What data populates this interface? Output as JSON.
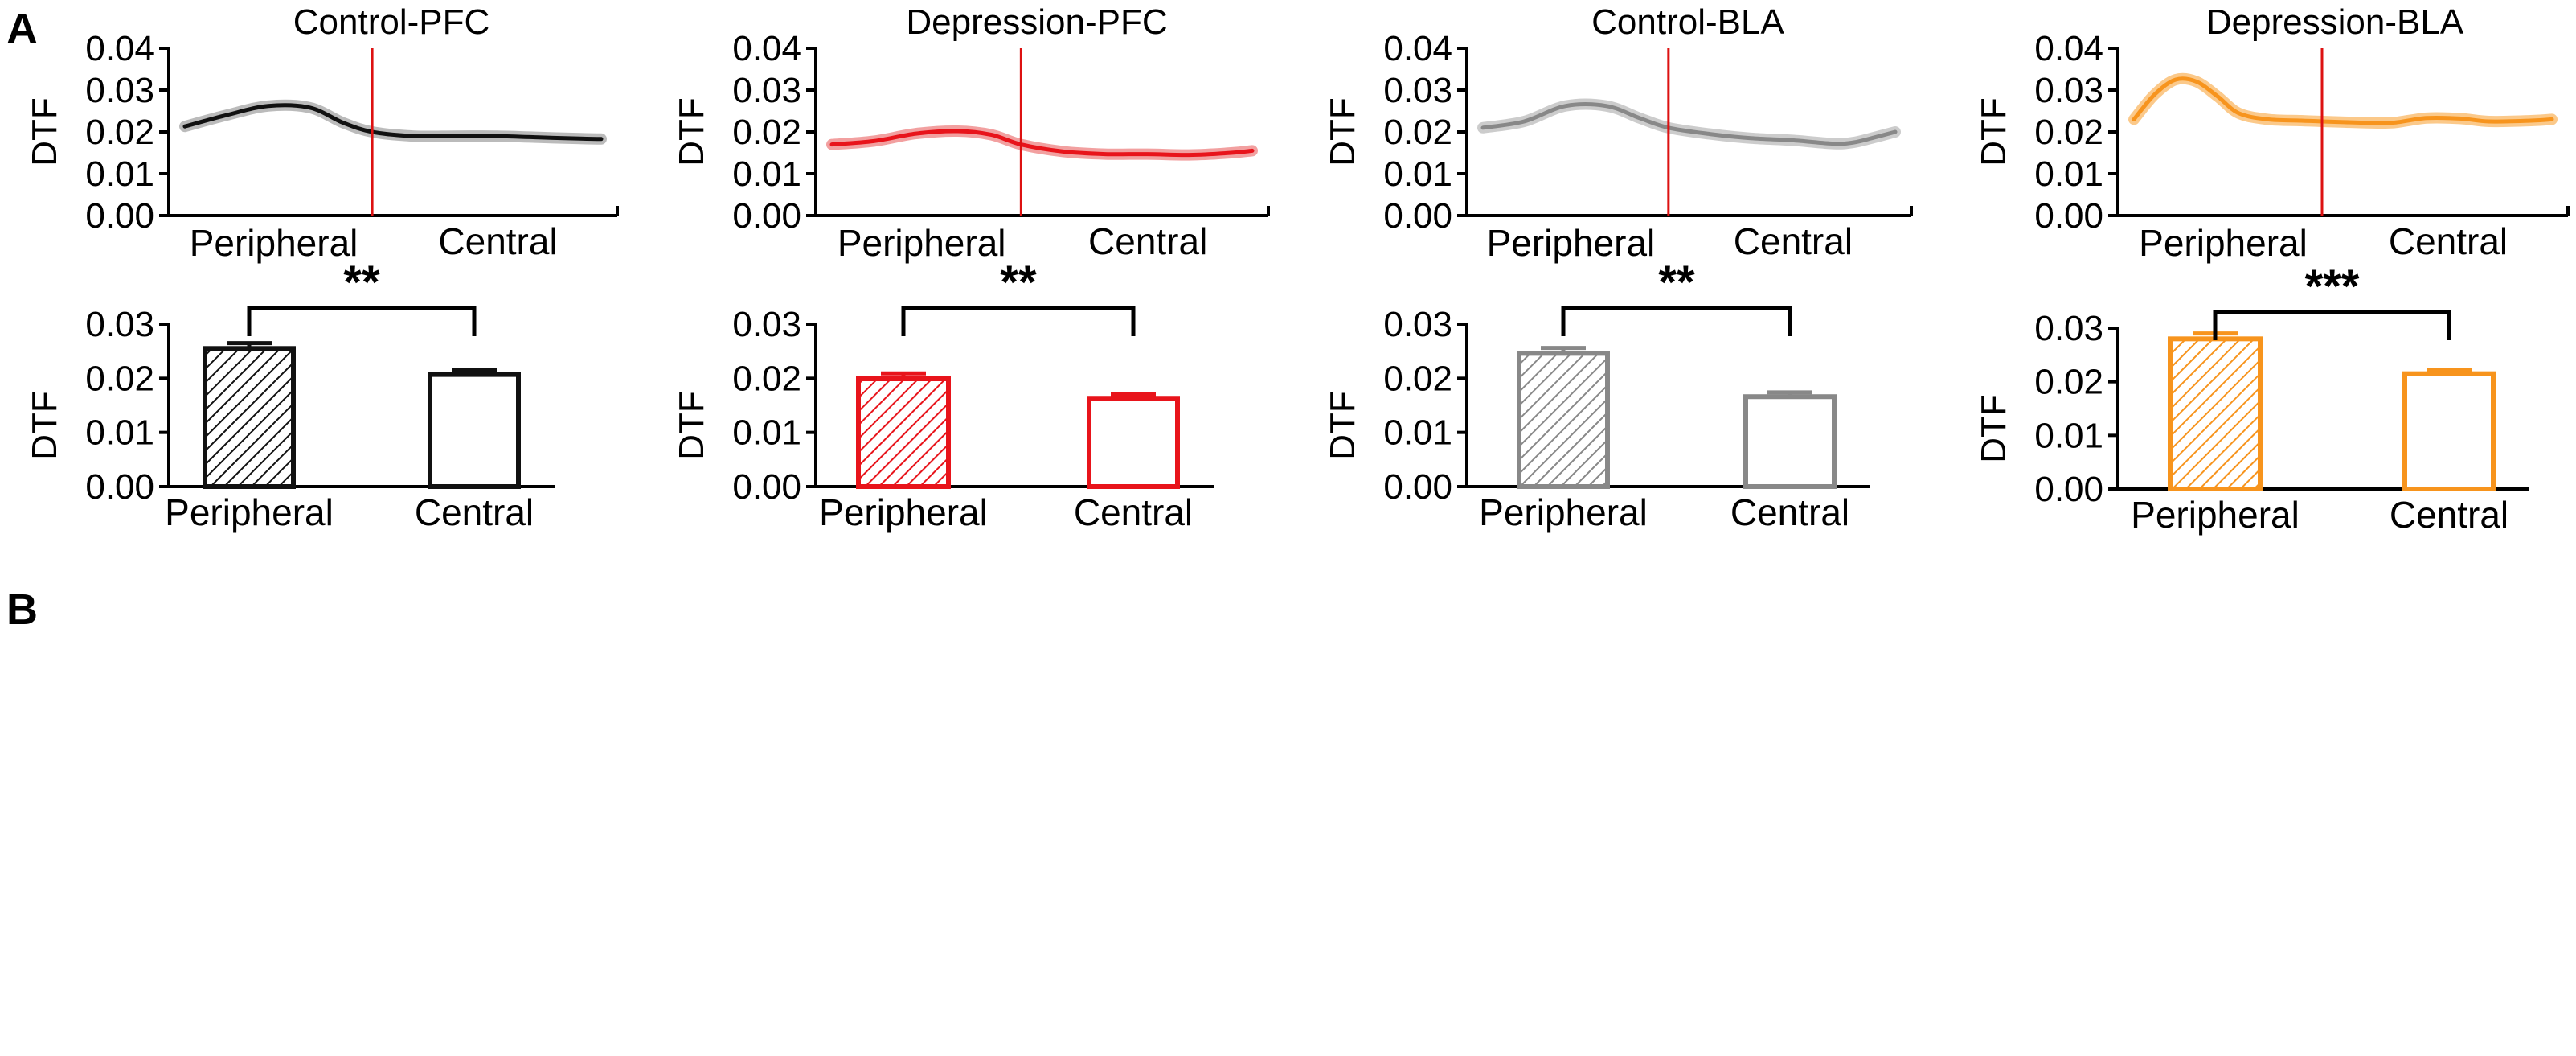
{
  "panel_labels": {
    "a": "A",
    "b": "B"
  },
  "chart_data": [
    {
      "type": "line",
      "title": "Control-PFC",
      "ylabel": "DTF",
      "ylim": [
        0,
        0.04
      ],
      "yticks": [
        "0.00",
        "0.01",
        "0.02",
        "0.03",
        "0.04"
      ],
      "xlabels": [
        "Peripheral",
        "Central"
      ],
      "color": "#111111",
      "band_color": "#bbbbbb",
      "divider_x": 0.45,
      "divider_color": "#dd1111",
      "x": [
        0,
        0.1,
        0.2,
        0.3,
        0.38,
        0.45,
        0.55,
        0.65,
        0.75,
        0.85,
        0.95,
        1
      ],
      "y": [
        0.0213,
        0.024,
        0.0262,
        0.0258,
        0.0222,
        0.02,
        0.019,
        0.019,
        0.019,
        0.0187,
        0.0184,
        0.0183
      ]
    },
    {
      "type": "line",
      "title": "Depression-PFC",
      "ylabel": "DTF",
      "ylim": [
        0,
        0.04
      ],
      "yticks": [
        "0.00",
        "0.01",
        "0.02",
        "0.03",
        "0.04"
      ],
      "xlabels": [
        "Peripheral",
        "Central"
      ],
      "color": "#e8141b",
      "band_color": "#f2a0a0",
      "divider_x": 0.45,
      "divider_color": "#dd1111",
      "x": [
        0,
        0.1,
        0.2,
        0.3,
        0.38,
        0.45,
        0.55,
        0.65,
        0.75,
        0.85,
        0.95,
        1
      ],
      "y": [
        0.017,
        0.0178,
        0.0196,
        0.0202,
        0.0193,
        0.017,
        0.0153,
        0.0147,
        0.0147,
        0.0145,
        0.015,
        0.0155
      ]
    },
    {
      "type": "line",
      "title": "Control-BLA",
      "ylabel": "DTF",
      "ylim": [
        0,
        0.04
      ],
      "yticks": [
        "0.00",
        "0.01",
        "0.02",
        "0.03",
        "0.04"
      ],
      "xlabels": [
        "Peripheral",
        "Central"
      ],
      "color": "#888888",
      "band_color": "#cccccc",
      "divider_x": 0.45,
      "divider_color": "#dd1111",
      "x": [
        0,
        0.1,
        0.2,
        0.3,
        0.38,
        0.45,
        0.55,
        0.65,
        0.75,
        0.85,
        0.9,
        0.95,
        1
      ],
      "y": [
        0.021,
        0.0225,
        0.0262,
        0.0262,
        0.0233,
        0.021,
        0.0195,
        0.0185,
        0.018,
        0.0172,
        0.0175,
        0.0187,
        0.02
      ]
    },
    {
      "type": "line",
      "title": "Depression-BLA",
      "ylabel": "DTF",
      "ylim": [
        0,
        0.04
      ],
      "yticks": [
        "0.00",
        "0.01",
        "0.02",
        "0.03",
        "0.04"
      ],
      "xlabels": [
        "Peripheral",
        "Central"
      ],
      "color": "#f7941d",
      "band_color": "#fbc98a",
      "divider_x": 0.45,
      "divider_color": "#dd1111",
      "x": [
        0,
        0.05,
        0.1,
        0.15,
        0.2,
        0.25,
        0.32,
        0.4,
        0.45,
        0.55,
        0.62,
        0.7,
        0.78,
        0.85,
        0.95,
        1
      ],
      "y": [
        0.023,
        0.029,
        0.0325,
        0.032,
        0.0285,
        0.0245,
        0.023,
        0.0227,
        0.0225,
        0.0222,
        0.0222,
        0.0233,
        0.0232,
        0.0225,
        0.0227,
        0.023
      ]
    },
    {
      "type": "bar",
      "ylabel": "DTF",
      "ylim": [
        0,
        0.03
      ],
      "yticks": [
        "0.00",
        "0.01",
        "0.02",
        "0.03"
      ],
      "categories": [
        "Peripheral",
        "Central"
      ],
      "values": [
        0.0255,
        0.0207
      ],
      "errors": [
        0.001,
        0.0008
      ],
      "color": "#111111",
      "patterns": [
        "hatched",
        "open"
      ],
      "significance": "**"
    },
    {
      "type": "bar",
      "ylabel": "DTF",
      "ylim": [
        0,
        0.03
      ],
      "yticks": [
        "0.00",
        "0.01",
        "0.02",
        "0.03"
      ],
      "categories": [
        "Peripheral",
        "Central"
      ],
      "values": [
        0.0199,
        0.0163
      ],
      "errors": [
        0.001,
        0.0007
      ],
      "color": "#e8141b",
      "patterns": [
        "hatched",
        "open"
      ],
      "significance": "**"
    },
    {
      "type": "bar",
      "ylabel": "DTF",
      "ylim": [
        0,
        0.03
      ],
      "yticks": [
        "0.00",
        "0.01",
        "0.02",
        "0.03"
      ],
      "categories": [
        "Peripheral",
        "Central"
      ],
      "values": [
        0.0246,
        0.0166
      ],
      "errors": [
        0.001,
        0.0008
      ],
      "color": "#888888",
      "patterns": [
        "hatched",
        "open"
      ],
      "significance": "**"
    },
    {
      "type": "bar",
      "ylabel": "DTF",
      "ylim": [
        0,
        0.03
      ],
      "yticks": [
        "0.00",
        "0.01",
        "0.02",
        "0.03"
      ],
      "categories": [
        "Peripheral",
        "Central"
      ],
      "values": [
        0.028,
        0.0215
      ],
      "errors": [
        0.001,
        0.0007
      ],
      "color": "#f7941d",
      "patterns": [
        "hatched",
        "open"
      ],
      "significance": "***"
    }
  ]
}
